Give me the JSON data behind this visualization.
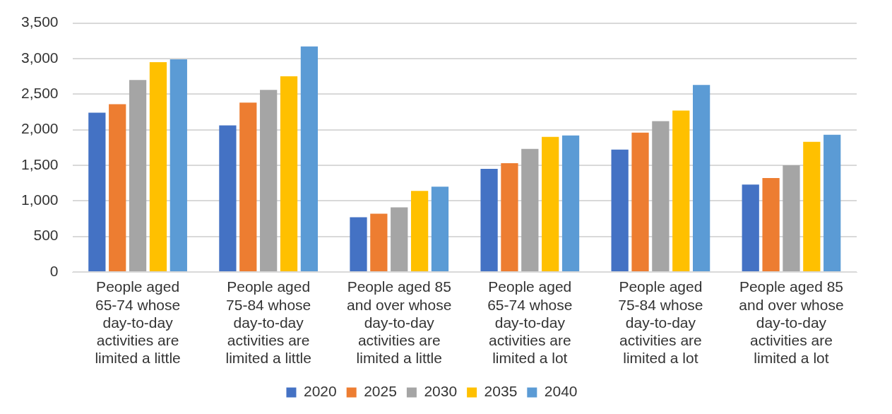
{
  "chart_data": {
    "type": "bar",
    "categories": [
      "People aged 65-74 whose day-to-day activities are limited a little",
      "People aged 75-84 whose day-to-day activities are limited a little",
      "People aged 85 and over whose day-to-day activities are limited a little",
      "People aged 65-74 whose day-to-day activities are limited a lot",
      "People aged 75-84 whose day-to-day activities are limited a lot",
      "People aged 85 and over whose day-to-day activities are limited a lot"
    ],
    "series": [
      {
        "name": "2020",
        "color": "#4472c4",
        "values": [
          2240,
          2060,
          770,
          1450,
          1720,
          1230
        ]
      },
      {
        "name": "2025",
        "color": "#ed7d31",
        "values": [
          2360,
          2380,
          820,
          1530,
          1960,
          1320
        ]
      },
      {
        "name": "2030",
        "color": "#a5a5a5",
        "values": [
          2700,
          2560,
          910,
          1730,
          2120,
          1500
        ]
      },
      {
        "name": "2035",
        "color": "#ffc000",
        "values": [
          2950,
          2750,
          1140,
          1900,
          2270,
          1830
        ]
      },
      {
        "name": "2040",
        "color": "#5b9bd5",
        "values": [
          2990,
          3170,
          1200,
          1920,
          2630,
          1930
        ]
      }
    ],
    "ylim": [
      0,
      3500
    ],
    "yticks": [
      {
        "value": 0,
        "label": "0"
      },
      {
        "value": 500,
        "label": "500"
      },
      {
        "value": 1000,
        "label": "1,000"
      },
      {
        "value": 1500,
        "label": "1,500"
      },
      {
        "value": 2000,
        "label": "2,000"
      },
      {
        "value": 2500,
        "label": "2,500"
      },
      {
        "value": 3000,
        "label": "3,000"
      },
      {
        "value": 3500,
        "label": "3,500"
      }
    ],
    "grid": "y",
    "legend": "bottom"
  }
}
